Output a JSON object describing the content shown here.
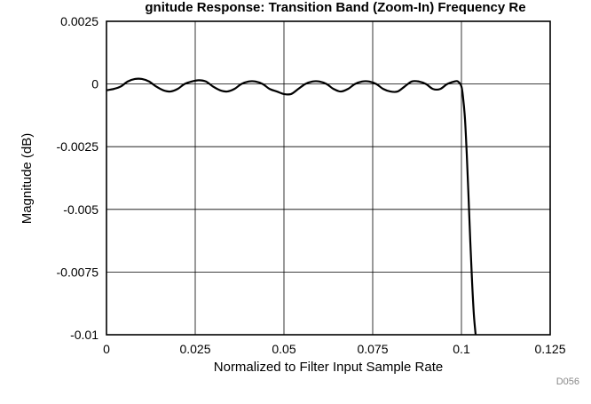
{
  "chart_data": {
    "type": "line",
    "title": "gnitude Response: Transition Band (Zoom-In) Frequency Re",
    "xlabel": "Normalized to Filter Input Sample Rate",
    "ylabel": "Magnitude (dB)",
    "xlim": [
      0,
      0.125
    ],
    "ylim": [
      -0.01,
      0.0025
    ],
    "x_ticks": [
      0,
      0.025,
      0.05,
      0.075,
      0.1,
      0.125
    ],
    "x_tick_labels": [
      "0",
      "0.025",
      "0.05",
      "0.075",
      "0.1",
      "0.125"
    ],
    "y_ticks": [
      0.0025,
      0,
      -0.0025,
      -0.005,
      -0.0075,
      -0.01
    ],
    "y_tick_labels": [
      "0.0025",
      "0",
      "-0.0025",
      "-0.005",
      "-0.0075",
      "-0.01"
    ],
    "grid": true,
    "series": [
      {
        "name": "",
        "color": "#000000",
        "x": [
          0,
          0.002,
          0.004,
          0.006,
          0.008,
          0.01,
          0.012,
          0.014,
          0.016,
          0.018,
          0.02,
          0.022,
          0.024,
          0.026,
          0.028,
          0.03,
          0.032,
          0.034,
          0.036,
          0.038,
          0.04,
          0.042,
          0.044,
          0.046,
          0.048,
          0.05,
          0.052,
          0.054,
          0.056,
          0.058,
          0.06,
          0.062,
          0.064,
          0.066,
          0.068,
          0.07,
          0.072,
          0.074,
          0.076,
          0.078,
          0.08,
          0.082,
          0.084,
          0.086,
          0.088,
          0.09,
          0.092,
          0.094,
          0.096,
          0.098,
          0.099,
          0.1,
          0.1005,
          0.101,
          0.1015,
          0.102,
          0.1025,
          0.103,
          0.1035,
          0.104
        ],
        "y": [
          -0.00025,
          -0.0002,
          -0.0001,
          0.0001,
          0.0002,
          0.0002,
          0.0001,
          -0.0001,
          -0.00025,
          -0.0003,
          -0.0002,
          0.0,
          0.0001,
          0.00015,
          0.0001,
          -0.0001,
          -0.00025,
          -0.0003,
          -0.0002,
          0.0,
          0.0001,
          0.0001,
          0.0,
          -0.0002,
          -0.0003,
          -0.0004,
          -0.0004,
          -0.0002,
          0.0,
          0.0001,
          0.0001,
          0.0,
          -0.0002,
          -0.0003,
          -0.0002,
          0.0,
          0.0001,
          0.0001,
          0.0,
          -0.0002,
          -0.0003,
          -0.0003,
          -0.0001,
          0.0001,
          0.0001,
          0.0,
          -0.0002,
          -0.0002,
          0.0,
          0.0001,
          0.0001,
          -0.0001,
          -0.0006,
          -0.0014,
          -0.0028,
          -0.0045,
          -0.0063,
          -0.0079,
          -0.0092,
          -0.01
        ]
      }
    ],
    "annotations": [
      "D056"
    ]
  }
}
